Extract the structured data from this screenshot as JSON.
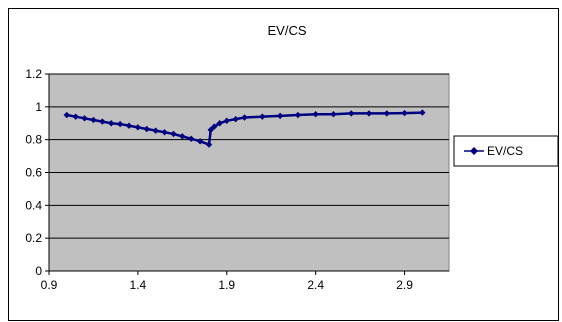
{
  "chart_data": {
    "type": "line",
    "title": "EV/CS",
    "xlabel": "",
    "ylabel": "",
    "xlim": [
      0.9,
      3.15
    ],
    "ylim": [
      0,
      1.2
    ],
    "x_ticks": [
      "0.9",
      "1.4",
      "1.9",
      "2.4",
      "2.9"
    ],
    "y_ticks": [
      "0",
      "0.2",
      "0.4",
      "0.6",
      "0.8",
      "1",
      "1.2"
    ],
    "grid": true,
    "legend_position": "right",
    "colors": {
      "plot_bg": "#c0c0c0",
      "series": "#000080",
      "grid": "#000000"
    },
    "series": [
      {
        "name": "EV/CS",
        "marker": "diamond",
        "x": [
          1.0,
          1.05,
          1.1,
          1.15,
          1.2,
          1.25,
          1.3,
          1.35,
          1.4,
          1.45,
          1.5,
          1.55,
          1.6,
          1.65,
          1.7,
          1.75,
          1.8,
          1.81,
          1.83,
          1.86,
          1.9,
          1.95,
          2.0,
          2.1,
          2.2,
          2.3,
          2.4,
          2.5,
          2.6,
          2.7,
          2.8,
          2.9,
          3.0
        ],
        "y": [
          0.95,
          0.94,
          0.93,
          0.92,
          0.91,
          0.9,
          0.895,
          0.885,
          0.875,
          0.865,
          0.855,
          0.845,
          0.835,
          0.82,
          0.805,
          0.79,
          0.77,
          0.86,
          0.88,
          0.9,
          0.915,
          0.925,
          0.935,
          0.94,
          0.945,
          0.95,
          0.955,
          0.955,
          0.96,
          0.96,
          0.96,
          0.962,
          0.965
        ]
      }
    ]
  }
}
